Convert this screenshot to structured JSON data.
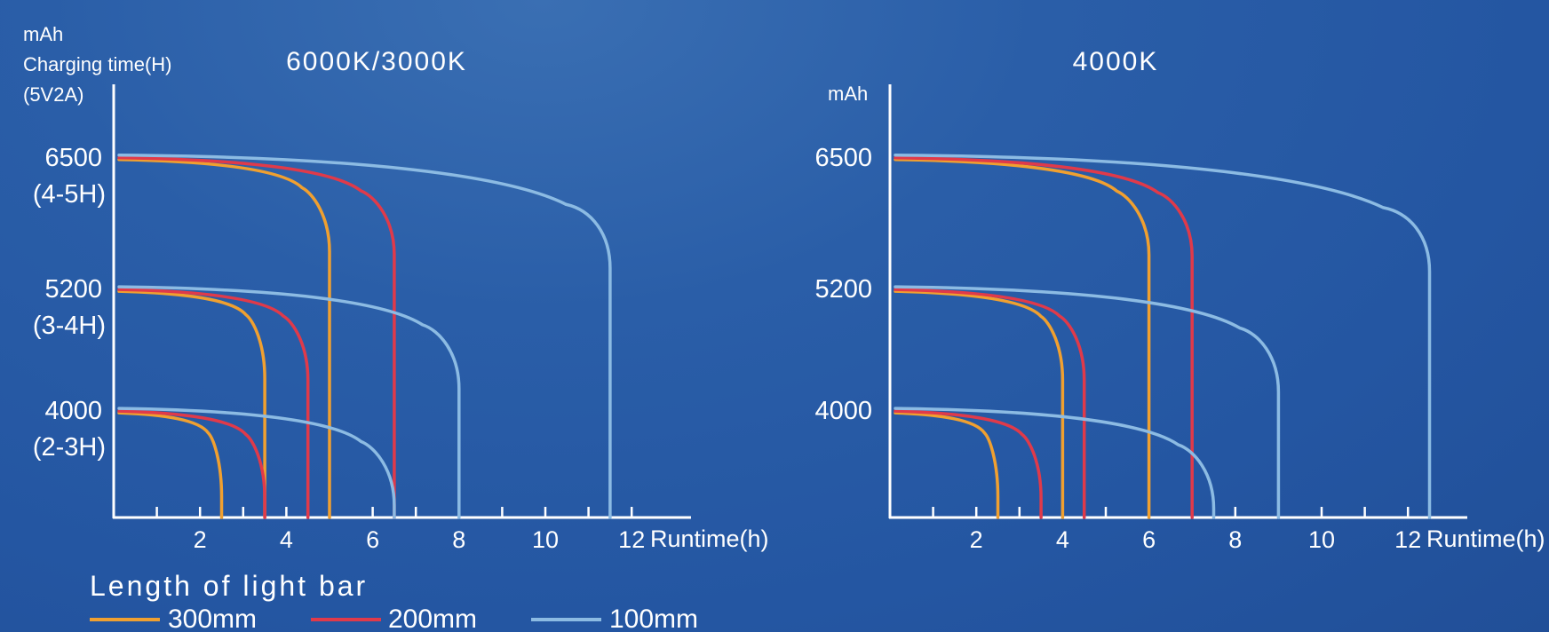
{
  "chart_data": [
    {
      "type": "line",
      "title": "6000K/3000K",
      "ylabel_lines": [
        "mAh",
        "Charging time(H)",
        "(5V2A)"
      ],
      "xlabel": "Runtime(h)",
      "xticks": [
        "2",
        "4",
        "6",
        "8",
        "10",
        "12"
      ],
      "xlim": [
        0,
        13.3
      ],
      "y_levels": [
        {
          "value": "6500",
          "sub": "(4-5H)",
          "y": 6500
        },
        {
          "value": "5200",
          "sub": "(3-4H)",
          "y": 5200
        },
        {
          "value": "4000",
          "sub": "(2-3H)",
          "y": 4000
        }
      ],
      "ylim": [
        2950,
        7050
      ],
      "curves": [
        {
          "capacity": 6500,
          "length": "300mm",
          "runtime": 5.0
        },
        {
          "capacity": 6500,
          "length": "200mm",
          "runtime": 6.5
        },
        {
          "capacity": 6500,
          "length": "100mm",
          "runtime": 11.5
        },
        {
          "capacity": 5200,
          "length": "300mm",
          "runtime": 3.5
        },
        {
          "capacity": 5200,
          "length": "200mm",
          "runtime": 4.5
        },
        {
          "capacity": 5200,
          "length": "100mm",
          "runtime": 8.0
        },
        {
          "capacity": 4000,
          "length": "300mm",
          "runtime": 2.5
        },
        {
          "capacity": 4000,
          "length": "200mm",
          "runtime": 3.5
        },
        {
          "capacity": 4000,
          "length": "100mm",
          "runtime": 6.5
        }
      ]
    },
    {
      "type": "line",
      "title": "4000K",
      "ylabel_lines": [
        "mAh"
      ],
      "xlabel": "Runtime(h)",
      "xticks": [
        "2",
        "4",
        "6",
        "8",
        "10",
        "12"
      ],
      "xlim": [
        0,
        13.3
      ],
      "y_levels": [
        {
          "value": "6500",
          "sub": "",
          "y": 6500
        },
        {
          "value": "5200",
          "sub": "",
          "y": 5200
        },
        {
          "value": "4000",
          "sub": "",
          "y": 4000
        }
      ],
      "ylim": [
        2950,
        7050
      ],
      "curves": [
        {
          "capacity": 6500,
          "length": "300mm",
          "runtime": 6.0
        },
        {
          "capacity": 6500,
          "length": "200mm",
          "runtime": 7.0
        },
        {
          "capacity": 6500,
          "length": "100mm",
          "runtime": 12.5
        },
        {
          "capacity": 5200,
          "length": "300mm",
          "runtime": 4.0
        },
        {
          "capacity": 5200,
          "length": "200mm",
          "runtime": 4.5
        },
        {
          "capacity": 5200,
          "length": "100mm",
          "runtime": 9.0
        },
        {
          "capacity": 4000,
          "length": "300mm",
          "runtime": 2.5
        },
        {
          "capacity": 4000,
          "length": "200mm",
          "runtime": 3.5
        },
        {
          "capacity": 4000,
          "length": "100mm",
          "runtime": 7.5
        }
      ]
    }
  ],
  "legend": {
    "title": "Length of light bar",
    "items": [
      {
        "label": "300mm",
        "color": "#f0a030"
      },
      {
        "label": "200mm",
        "color": "#e03a4a"
      },
      {
        "label": "100mm",
        "color": "#8cbbe3"
      }
    ]
  },
  "colors": {
    "axis": "#ffffff",
    "text": "#ffffff",
    "background": "#2456a2"
  }
}
